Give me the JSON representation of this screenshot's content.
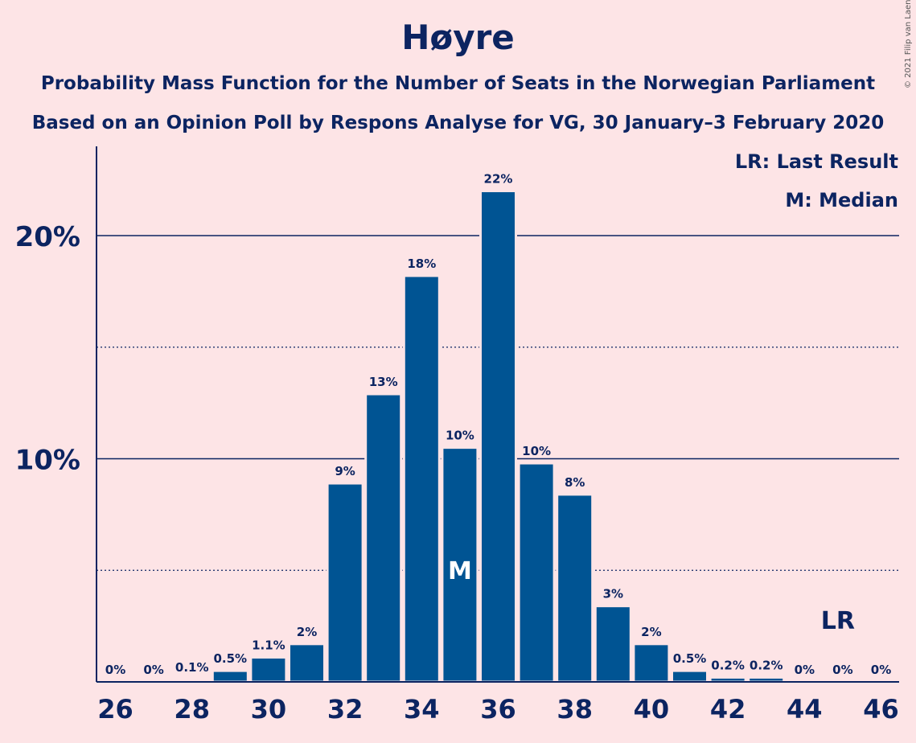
{
  "chart_data": {
    "type": "bar",
    "title": "Høyre",
    "subtitle_lines": [
      "Probability Mass Function for the Number of Seats in the Norwegian Parliament",
      "Based on an Opinion Poll by Respons Analyse for VG, 30 January–3 February 2020"
    ],
    "copyright": "© 2021 Filip van Laenen",
    "legend": [
      "LR: Last Result",
      "M: Median"
    ],
    "legend_position": "top-right",
    "x": [
      26,
      27,
      28,
      29,
      30,
      31,
      32,
      33,
      34,
      35,
      36,
      37,
      38,
      39,
      40,
      41,
      42,
      43,
      44,
      45,
      46
    ],
    "values": [
      0,
      0,
      0.1,
      0.5,
      1.1,
      1.7,
      8.9,
      12.9,
      18.2,
      10.5,
      22.0,
      9.8,
      8.4,
      3.4,
      1.7,
      0.5,
      0.2,
      0.2,
      0,
      0,
      0
    ],
    "data_labels": [
      "0%",
      "0%",
      "0.1%",
      "0.5%",
      "1.1%",
      "2%",
      "9%",
      "13%",
      "18%",
      "10%",
      "22%",
      "10%",
      "8%",
      "3%",
      "2%",
      "0.5%",
      "0.2%",
      "0.2%",
      "0%",
      "0%",
      "0%"
    ],
    "x_tick_labels": [
      "26",
      "28",
      "30",
      "32",
      "34",
      "36",
      "38",
      "40",
      "42",
      "44",
      "46"
    ],
    "x_ticks": [
      26,
      28,
      30,
      32,
      34,
      36,
      38,
      40,
      42,
      44,
      46
    ],
    "y_tick_labels": [
      "10%",
      "20%"
    ],
    "y_ticks": [
      10,
      20
    ],
    "y_minor_gridlines": [
      5,
      15
    ],
    "ylim": [
      0,
      24
    ],
    "median_seat": 35,
    "median_marker": "M",
    "last_result_seat": 45,
    "last_result_marker": "LR",
    "colors": {
      "bar": "#005493",
      "text": "#0c2461",
      "background": "#fde4e6",
      "marker_text": "#ffffff"
    }
  }
}
